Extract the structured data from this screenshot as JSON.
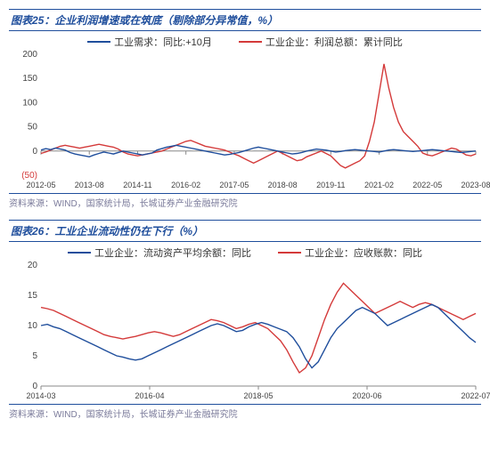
{
  "chart25": {
    "type": "line",
    "title_prefix": "图表25：",
    "title": "企业利润增速或在筑底（剔除部分异常值，%）",
    "source_label": "资料来源：",
    "source": "WIND，国家统计局，长城证券产业金融研究院",
    "legend": [
      {
        "label": "工业需求：同比:+10月",
        "color": "#1f4e9c"
      },
      {
        "label": "工业企业：利润总额：累计同比",
        "color": "#d43a3a"
      }
    ],
    "ylim": [
      -50,
      200
    ],
    "ytick_step": 50,
    "xlabels": [
      "2012-05",
      "2013-08",
      "2014-11",
      "2016-02",
      "2017-05",
      "2018-08",
      "2019-11",
      "2021-02",
      "2022-05",
      "2023-08"
    ],
    "grid_color": "#e0e0e0",
    "background_color": "#ffffff",
    "line_width": 1.4,
    "series": {
      "blue": [
        2,
        5,
        3,
        6,
        4,
        2,
        -3,
        -6,
        -8,
        -10,
        -12,
        -8,
        -5,
        -2,
        -4,
        -6,
        -3,
        0,
        -2,
        -4,
        -6,
        -8,
        -6,
        -4,
        2,
        5,
        8,
        10,
        12,
        10,
        8,
        6,
        4,
        2,
        0,
        -2,
        -4,
        -6,
        -8,
        -7,
        -5,
        -3,
        0,
        3,
        6,
        8,
        6,
        4,
        2,
        0,
        -2,
        -4,
        -6,
        -5,
        -3,
        0,
        2,
        4,
        3,
        2,
        0,
        -2,
        -1,
        1,
        2,
        3,
        2,
        1,
        0,
        -1,
        -2,
        0,
        2,
        3,
        2,
        1,
        0,
        -1,
        0,
        1,
        2,
        3,
        2,
        1,
        0,
        -1,
        -2,
        -3,
        -2,
        -1,
        0
      ],
      "red": [
        -5,
        -2,
        2,
        6,
        10,
        12,
        10,
        8,
        6,
        8,
        10,
        12,
        14,
        12,
        10,
        8,
        4,
        -2,
        -6,
        -8,
        -10,
        -8,
        -6,
        -4,
        -2,
        0,
        4,
        8,
        12,
        16,
        20,
        22,
        18,
        14,
        10,
        8,
        6,
        4,
        2,
        -2,
        -6,
        -10,
        -15,
        -20,
        -25,
        -20,
        -15,
        -10,
        -5,
        0,
        -5,
        -10,
        -15,
        -20,
        -18,
        -12,
        -8,
        -4,
        0,
        -5,
        -10,
        -20,
        -30,
        -35,
        -30,
        -25,
        -20,
        -10,
        20,
        60,
        120,
        180,
        130,
        90,
        60,
        40,
        30,
        20,
        10,
        -4,
        -8,
        -10,
        -6,
        -2,
        2,
        6,
        4,
        -2,
        -8,
        -10,
        -6
      ]
    }
  },
  "chart26": {
    "type": "line",
    "title_prefix": "图表26：",
    "title": "工业企业流动性仍在下行（%）",
    "source_label": "资料来源：",
    "source": "WIND，国家统计局，长城证券产业金融研究院",
    "legend": [
      {
        "label": "工业企业：流动资产平均余额：同比",
        "color": "#1f4e9c"
      },
      {
        "label": "工业企业：应收账款：同比",
        "color": "#d43a3a"
      }
    ],
    "ylim": [
      0,
      20
    ],
    "ytick_step": 5,
    "xlabels": [
      "2014-03",
      "2016-04",
      "2018-05",
      "2020-06",
      "2022-07"
    ],
    "grid_color": "#e0e0e0",
    "background_color": "#ffffff",
    "line_width": 1.4,
    "series": {
      "blue": [
        10,
        10.2,
        9.8,
        9.5,
        9.0,
        8.5,
        8.0,
        7.5,
        7.0,
        6.5,
        6.0,
        5.5,
        5.0,
        4.8,
        4.5,
        4.3,
        4.5,
        5.0,
        5.5,
        6.0,
        6.5,
        7.0,
        7.5,
        8.0,
        8.5,
        9.0,
        9.5,
        10.0,
        10.3,
        10.0,
        9.5,
        9.0,
        9.2,
        9.8,
        10.2,
        10.5,
        10.2,
        9.8,
        9.4,
        9.0,
        8.0,
        6.5,
        4.5,
        3.0,
        4.0,
        6.0,
        8.0,
        9.5,
        10.5,
        11.5,
        12.5,
        13.0,
        12.5,
        12.0,
        11.0,
        10.0,
        10.5,
        11.0,
        11.5,
        12.0,
        12.5,
        13.0,
        13.5,
        13.0,
        12.0,
        11.0,
        10.0,
        9.0,
        8.0,
        7.2
      ],
      "red": [
        13,
        12.8,
        12.5,
        12.0,
        11.5,
        11.0,
        10.5,
        10.0,
        9.5,
        9.0,
        8.5,
        8.2,
        8.0,
        7.8,
        8.0,
        8.2,
        8.5,
        8.8,
        9.0,
        8.8,
        8.5,
        8.2,
        8.5,
        9.0,
        9.5,
        10.0,
        10.5,
        11.0,
        10.8,
        10.5,
        10.0,
        9.5,
        9.8,
        10.2,
        10.5,
        10.0,
        9.5,
        8.5,
        7.5,
        6.0,
        4.0,
        2.2,
        3.0,
        5.0,
        8.0,
        11.0,
        13.5,
        15.5,
        17.0,
        16.0,
        15.0,
        14.0,
        13.0,
        12.0,
        12.5,
        13.0,
        13.5,
        14.0,
        13.5,
        13.0,
        13.5,
        13.8,
        13.5,
        13.0,
        12.5,
        12.0,
        11.5,
        11.0,
        11.5,
        12.0
      ]
    }
  }
}
